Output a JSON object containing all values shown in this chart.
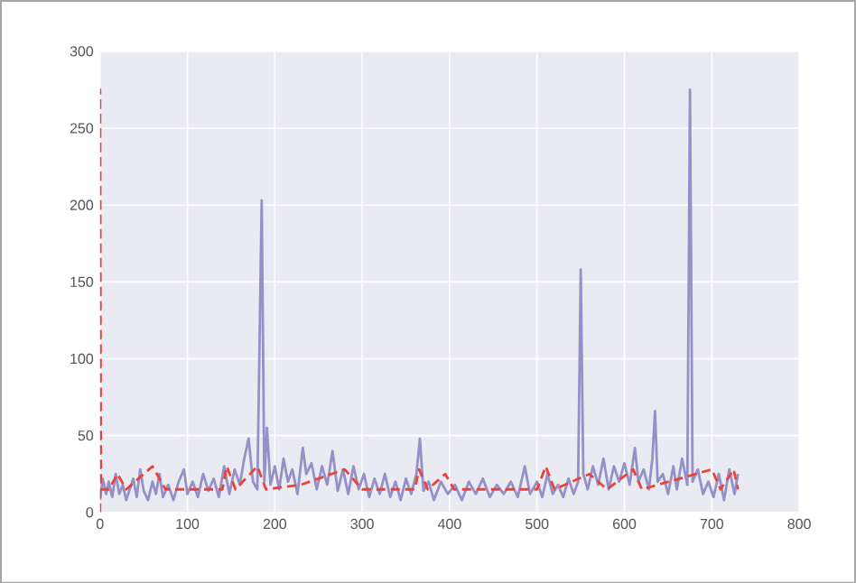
{
  "chart_data": {
    "type": "line",
    "xlim": [
      0,
      800
    ],
    "ylim": [
      0,
      300
    ],
    "xticks": [
      0,
      100,
      200,
      300,
      400,
      500,
      600,
      700,
      800
    ],
    "yticks": [
      0,
      50,
      100,
      150,
      200,
      250,
      300
    ],
    "grid": true,
    "marker": "none",
    "series": [
      {
        "color": "#9590c8",
        "line_style": "solid",
        "x": [
          0,
          3,
          7,
          10,
          14,
          18,
          22,
          26,
          30,
          34,
          38,
          42,
          46,
          50,
          55,
          60,
          64,
          68,
          72,
          78,
          84,
          90,
          96,
          100,
          106,
          112,
          118,
          124,
          130,
          136,
          142,
          148,
          154,
          160,
          165,
          170,
          175,
          180,
          185,
          188,
          191,
          195,
          200,
          205,
          210,
          215,
          220,
          226,
          232,
          236,
          242,
          248,
          254,
          260,
          266,
          272,
          278,
          284,
          290,
          296,
          302,
          308,
          314,
          320,
          326,
          332,
          338,
          344,
          350,
          356,
          362,
          366,
          370,
          376,
          382,
          390,
          398,
          406,
          414,
          422,
          430,
          438,
          446,
          454,
          462,
          470,
          478,
          486,
          492,
          500,
          506,
          512,
          518,
          524,
          530,
          536,
          542,
          547,
          550,
          553,
          558,
          564,
          570,
          576,
          582,
          588,
          594,
          600,
          606,
          612,
          616,
          622,
          628,
          632,
          635,
          638,
          644,
          650,
          656,
          660,
          666,
          672,
          675,
          678,
          684,
          690,
          696,
          702,
          708,
          714,
          720,
          726,
          730
        ],
        "values": [
          8,
          22,
          12,
          20,
          10,
          25,
          12,
          18,
          8,
          15,
          22,
          10,
          28,
          14,
          8,
          20,
          12,
          25,
          10,
          18,
          8,
          20,
          28,
          12,
          20,
          10,
          25,
          14,
          22,
          10,
          30,
          12,
          28,
          18,
          35,
          48,
          20,
          15,
          203,
          20,
          55,
          18,
          30,
          15,
          35,
          20,
          28,
          12,
          42,
          25,
          32,
          15,
          30,
          18,
          40,
          14,
          28,
          12,
          30,
          15,
          25,
          10,
          22,
          12,
          25,
          10,
          20,
          8,
          22,
          12,
          25,
          48,
          14,
          20,
          8,
          20,
          12,
          18,
          8,
          20,
          12,
          22,
          10,
          18,
          12,
          20,
          10,
          30,
          12,
          20,
          10,
          25,
          12,
          18,
          10,
          22,
          12,
          20,
          158,
          25,
          15,
          30,
          18,
          35,
          15,
          30,
          20,
          32,
          18,
          42,
          20,
          28,
          15,
          35,
          66,
          20,
          25,
          12,
          30,
          15,
          35,
          18,
          275,
          20,
          28,
          12,
          20,
          10,
          25,
          8,
          28,
          12,
          25
        ]
      },
      {
        "color": "#e8443a",
        "line_style": "dashed",
        "x": [
          0,
          0,
          1,
          10,
          20,
          30,
          60,
          75,
          140,
          145,
          155,
          180,
          190,
          230,
          280,
          300,
          360,
          365,
          375,
          395,
          405,
          500,
          510,
          520,
          560,
          580,
          610,
          620,
          700,
          710,
          725,
          730
        ],
        "values": [
          0,
          275,
          15,
          15,
          25,
          15,
          30,
          15,
          15,
          30,
          15,
          30,
          15,
          18,
          28,
          15,
          15,
          28,
          15,
          25,
          15,
          15,
          30,
          15,
          25,
          15,
          28,
          15,
          28,
          15,
          28,
          15
        ]
      }
    ]
  }
}
